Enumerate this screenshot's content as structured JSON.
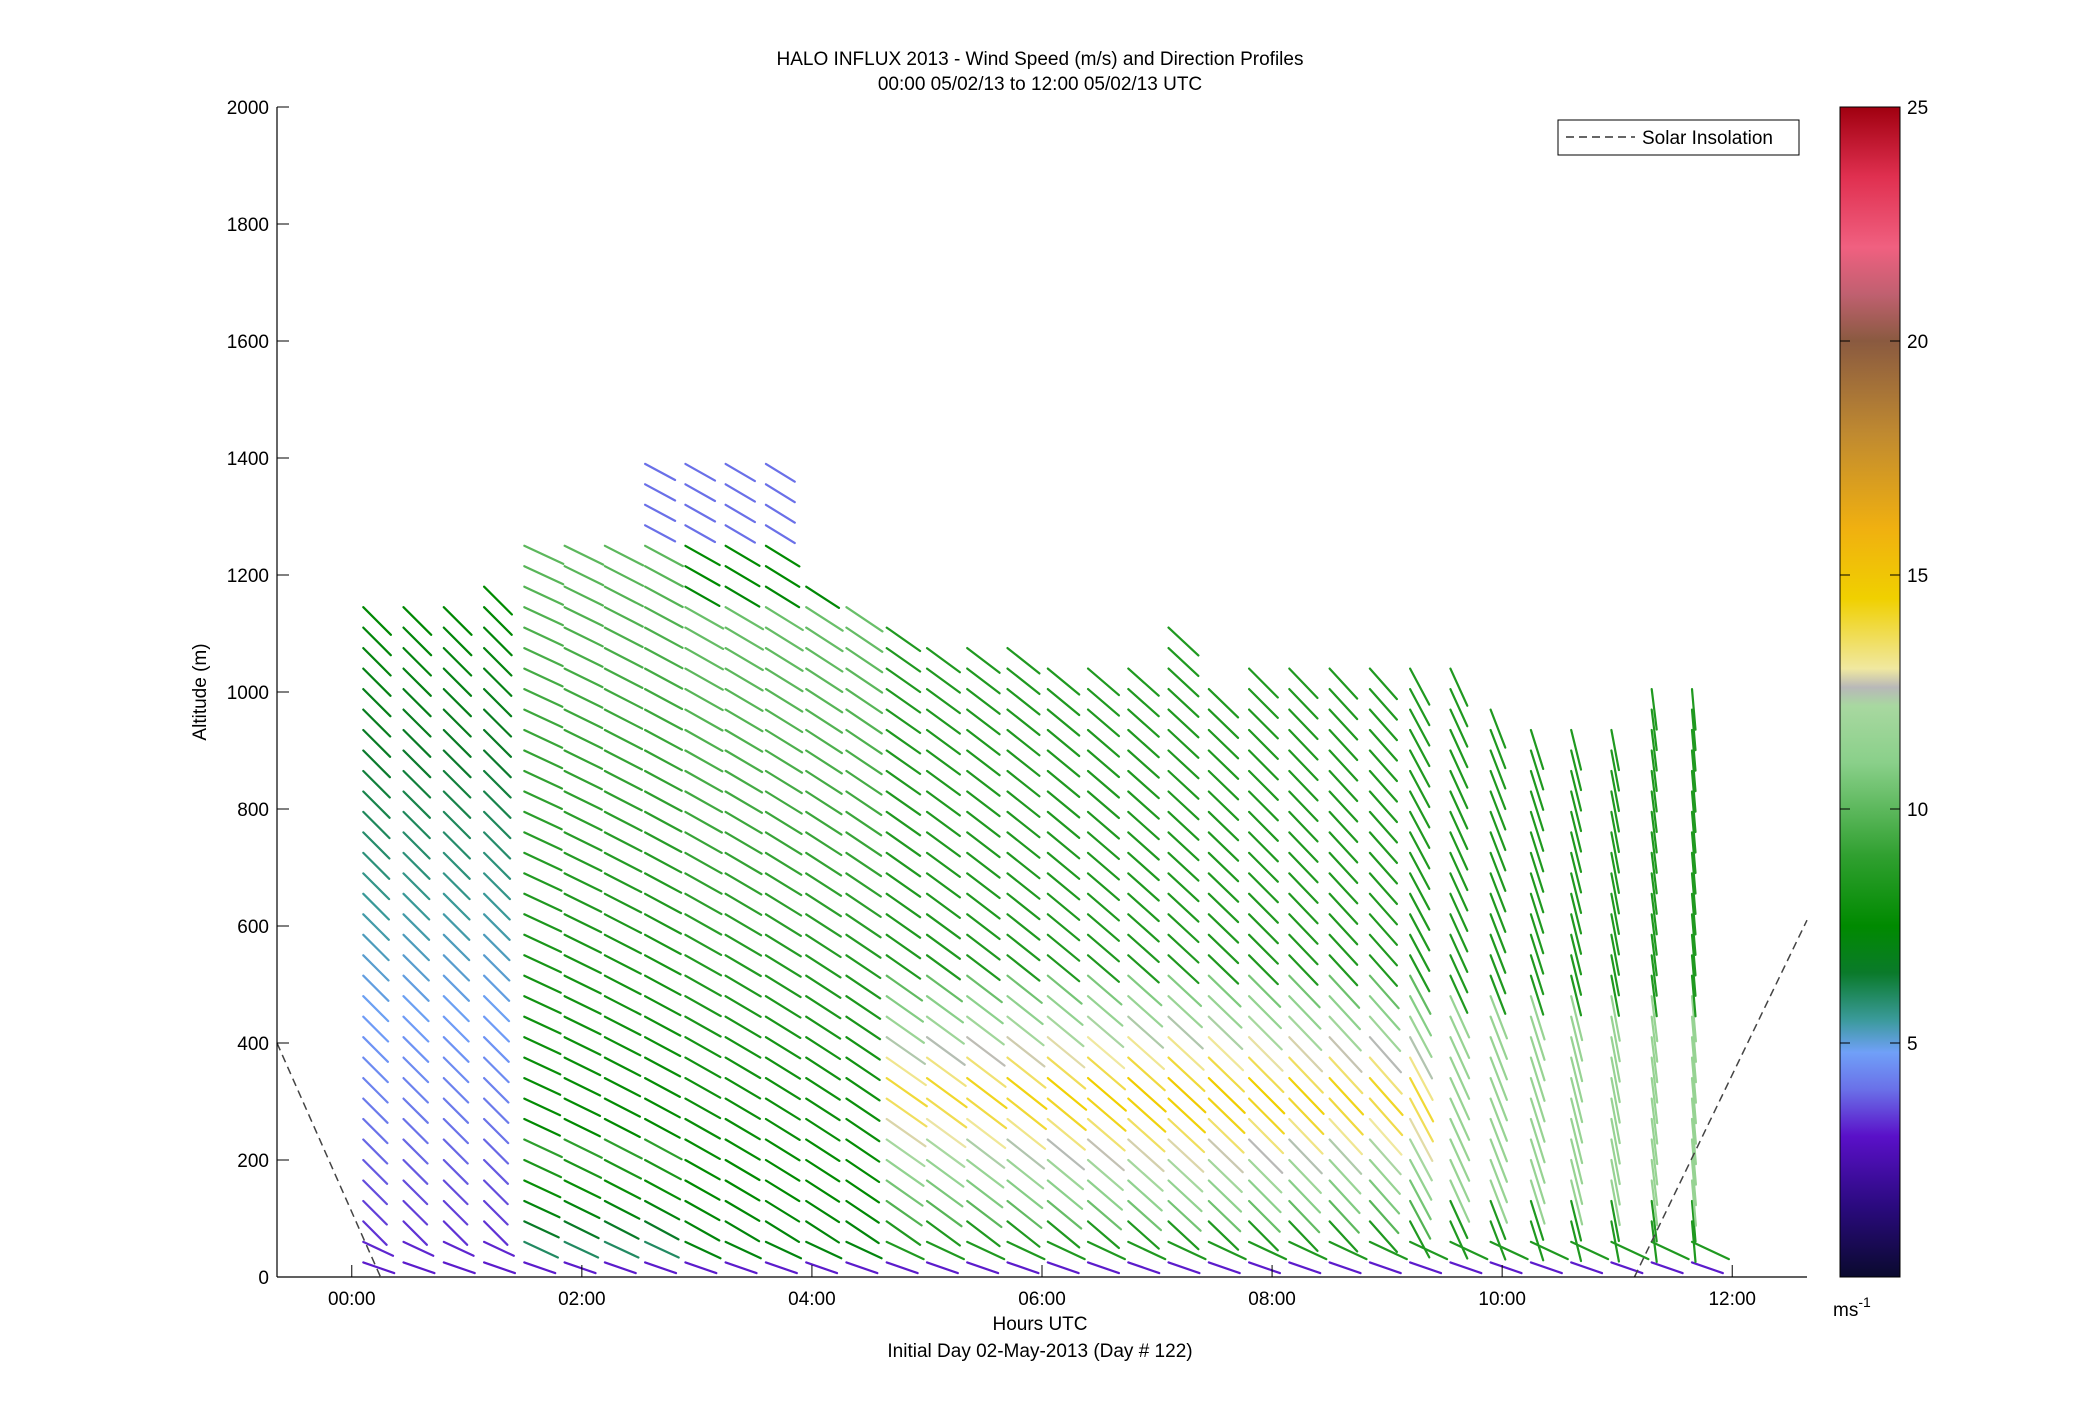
{
  "chart_data": {
    "type": "scatter",
    "title": "HALO INFLUX 2013 - Wind Speed (m/s) and Direction Profiles",
    "subtitle": "00:00 05/02/13 to 12:00 05/02/13  UTC",
    "xlabel": "Hours UTC",
    "xlabel_note": "Initial Day 02-May-2013 (Day # 122)",
    "ylabel": "Altitude (m)",
    "xlim_hours": [
      -0.65,
      12.65
    ],
    "ylim": [
      0,
      2000
    ],
    "x_ticks": [
      {
        "value": 0,
        "label": "00:00"
      },
      {
        "value": 2,
        "label": "02:00"
      },
      {
        "value": 4,
        "label": "04:00"
      },
      {
        "value": 6,
        "label": "06:00"
      },
      {
        "value": 8,
        "label": "08:00"
      },
      {
        "value": 10,
        "label": "10:00"
      },
      {
        "value": 12,
        "label": "12:00"
      }
    ],
    "y_ticks": [
      0,
      200,
      400,
      600,
      800,
      1000,
      1200,
      1400,
      1600,
      1800,
      2000
    ],
    "legend": {
      "label": "Solar Insolation",
      "placement": "top-right",
      "style": "dashed"
    },
    "colorbar": {
      "min": 0,
      "max": 25,
      "ticks": [
        5,
        10,
        15,
        20,
        25
      ],
      "unit_label": "ms",
      "unit_exponent": "-1",
      "colormap": [
        {
          "v": 0,
          "c": "#0a0a2e"
        },
        {
          "v": 1.5,
          "c": "#2a0a7e"
        },
        {
          "v": 3,
          "c": "#5a10c8"
        },
        {
          "v": 4,
          "c": "#6a70e8"
        },
        {
          "v": 4.8,
          "c": "#70a0f8"
        },
        {
          "v": 5.5,
          "c": "#3a9a9a"
        },
        {
          "v": 6.5,
          "c": "#0a7a2a"
        },
        {
          "v": 7.5,
          "c": "#008a00"
        },
        {
          "v": 9,
          "c": "#30a030"
        },
        {
          "v": 11,
          "c": "#8ad08a"
        },
        {
          "v": 12.2,
          "c": "#a8d8a0"
        },
        {
          "v": 12.6,
          "c": "#b8b8b8"
        },
        {
          "v": 13,
          "c": "#f0e8a0"
        },
        {
          "v": 14.5,
          "c": "#f0d000"
        },
        {
          "v": 16,
          "c": "#f0b010"
        },
        {
          "v": 18,
          "c": "#c08a30"
        },
        {
          "v": 20,
          "c": "#8a5a40"
        },
        {
          "v": 21,
          "c": "#c06070"
        },
        {
          "v": 22,
          "c": "#f06080"
        },
        {
          "v": 23.5,
          "c": "#e03050"
        },
        {
          "v": 25,
          "c": "#a00010"
        }
      ]
    },
    "solar_insolation": [
      {
        "x": -0.65,
        "y": 400
      },
      {
        "x": 0.25,
        "y": 0
      },
      {
        "x": 11.15,
        "y": 0
      },
      {
        "x": 12.65,
        "y": 610
      }
    ],
    "profiles": {
      "times": [
        0.1,
        0.45,
        0.8,
        1.15,
        1.5,
        1.85,
        2.2,
        2.55,
        2.9,
        3.25,
        3.6,
        3.95,
        4.3,
        4.65,
        5.0,
        5.35,
        5.7,
        6.05,
        6.4,
        6.75,
        7.1,
        7.45,
        7.8,
        8.15,
        8.5,
        8.85,
        9.2,
        9.55,
        9.9,
        10.25,
        10.6,
        10.95,
        11.3,
        11.65
      ],
      "top_altitude": [
        1150,
        1150,
        1150,
        1200,
        1250,
        1250,
        1250,
        1400,
        1400,
        1400,
        1400,
        1180,
        1150,
        1120,
        1100,
        1100,
        1080,
        1060,
        1060,
        1050,
        1140,
        1030,
        1060,
        1050,
        1040,
        1060,
        1060,
        1040,
        1000,
        960,
        960,
        960,
        1020,
        1020
      ],
      "note": "Wind barbs every ~35 m; direction mostly from WNW/NW (pointing toward SE), near-vertical after 09:00; speeds 2-16 m/s."
    }
  }
}
